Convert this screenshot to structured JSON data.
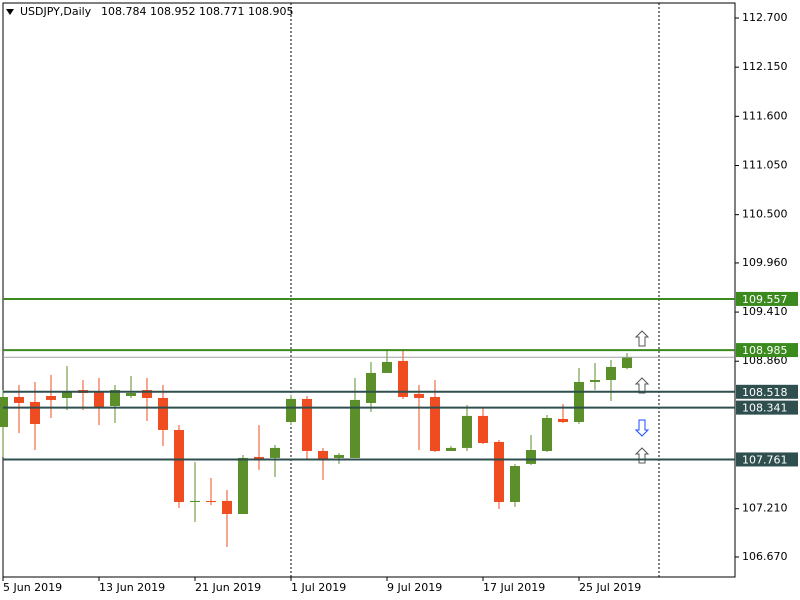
{
  "chart_data": {
    "type": "candlestick",
    "symbol": "USDJPY,Daily",
    "categories": [
      "5 Jun 2019",
      null,
      null,
      null,
      null,
      null,
      "13 Jun 2019",
      null,
      null,
      null,
      null,
      null,
      "21 Jun 2019",
      null,
      null,
      null,
      null,
      null,
      "1 Jul 2019",
      null,
      null,
      null,
      null,
      null,
      "9 Jul 2019",
      null,
      null,
      null,
      null,
      null,
      "17 Jul 2019",
      null,
      null,
      null,
      null,
      null,
      "25 Jul 2019",
      null,
      null,
      null
    ],
    "open": [
      108.124,
      108.46,
      108.404,
      108.471,
      108.449,
      108.538,
      108.516,
      108.359,
      108.471,
      108.538,
      108.449,
      108.091,
      107.285,
      107.297,
      107.297,
      107.151,
      107.789,
      107.778,
      108.18,
      108.438,
      107.856,
      107.778,
      107.778,
      108.393,
      108.729,
      108.863,
      108.494,
      108.46,
      107.856,
      107.89,
      108.248,
      107.957,
      107.285,
      107.711,
      107.856,
      108.214,
      108.18,
      108.628,
      108.65,
      108.784
    ],
    "high": [
      108.538,
      108.594,
      108.628,
      108.706,
      108.807,
      108.65,
      108.673,
      108.594,
      108.695,
      108.673,
      108.594,
      108.147,
      107.733,
      107.554,
      107.42,
      107.811,
      108.147,
      107.923,
      108.483,
      108.471,
      107.89,
      107.834,
      108.673,
      108.852,
      108.997,
      108.997,
      108.594,
      108.65,
      107.912,
      108.371,
      108.337,
      107.979,
      107.711,
      108.035,
      108.259,
      108.382,
      108.785,
      108.84,
      108.874,
      108.952
    ],
    "low": [
      107.789,
      108.057,
      107.867,
      108.225,
      108.315,
      108.315,
      108.147,
      108.169,
      108.449,
      108.192,
      107.912,
      107.218,
      107.062,
      107.252,
      106.782,
      107.151,
      107.644,
      107.565,
      108.147,
      107.767,
      107.532,
      107.711,
      107.778,
      108.292,
      108.729,
      108.438,
      107.867,
      107.845,
      107.856,
      107.856,
      107.934,
      107.207,
      107.23,
      107.7,
      107.845,
      108.169,
      108.158,
      108.538,
      108.415,
      108.771
    ],
    "close": [
      108.46,
      108.393,
      108.158,
      108.427,
      108.516,
      108.505,
      108.348,
      108.538,
      108.505,
      108.449,
      108.091,
      107.285,
      107.297,
      107.285,
      107.151,
      107.778,
      107.767,
      107.89,
      108.438,
      107.856,
      107.755,
      107.811,
      108.427,
      108.729,
      108.852,
      108.46,
      108.449,
      107.856,
      107.89,
      108.248,
      107.945,
      107.285,
      107.688,
      107.867,
      108.225,
      108.18,
      108.628,
      108.65,
      108.796,
      108.905
    ],
    "up_color": "#5a8f29",
    "down_color": "#ef4c22",
    "ylim": [
      106.446,
      112.868
    ],
    "yticks": [
      {
        "value": 112.7,
        "label": "112.700"
      },
      {
        "value": 112.15,
        "label": "112.150"
      },
      {
        "value": 111.6,
        "label": "111.600"
      },
      {
        "value": 111.05,
        "label": "111.050"
      },
      {
        "value": 110.5,
        "label": "110.500"
      },
      {
        "value": 109.96,
        "label": "109.960"
      },
      {
        "value": 109.41,
        "label": "109.410"
      },
      {
        "value": 108.86,
        "label": "108.860"
      },
      {
        "value": 107.21,
        "label": "107.210"
      },
      {
        "value": 106.67,
        "label": "106.670"
      }
    ],
    "levels": [
      {
        "value": 109.557,
        "color": "#3b8a1e"
      },
      {
        "value": 108.985,
        "color": "#3b8a1e"
      },
      {
        "value": 108.518,
        "color": "#2f4f4f"
      },
      {
        "value": 108.341,
        "color": "#2f4f4f"
      },
      {
        "value": 107.761,
        "color": "#2f4f4f"
      }
    ]
  }
}
